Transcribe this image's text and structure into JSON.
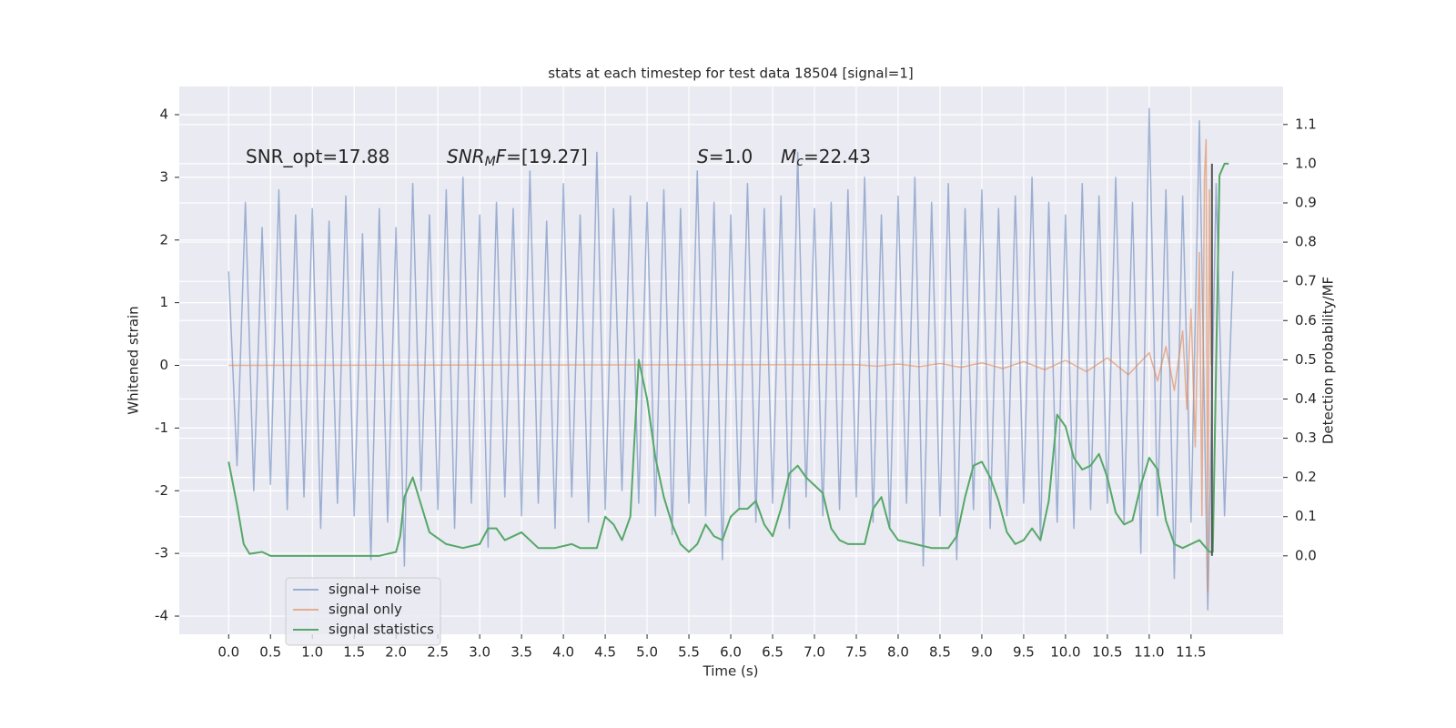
{
  "chart_data": {
    "type": "line",
    "title": "stats at each timestep for test data 18504 [signal=1]",
    "x_label": "Time (s)",
    "y_label": "Whitened strain",
    "y2_label": "Detection probability/MF",
    "annotations": [
      {
        "runs": [
          {
            "text": "SNR_opt=17.88"
          }
        ]
      },
      {
        "runs": [
          {
            "text": "SNR",
            "italic": true
          },
          {
            "text": "M",
            "italic": true,
            "sub": true
          },
          {
            "text": "F",
            "italic": true
          },
          {
            "text": "=[19.27]"
          }
        ]
      },
      {
        "runs": [
          {
            "text": "S",
            "italic": true
          },
          {
            "text": "=1.0"
          }
        ]
      },
      {
        "runs": [
          {
            "text": "M",
            "italic": true
          },
          {
            "text": "c",
            "italic": true,
            "sub": true
          },
          {
            "text": "=22.43"
          }
        ]
      }
    ],
    "grid": true,
    "legend": "lower left",
    "background": "#eaeaf2",
    "xlim": [
      -0.59,
      12.6
    ],
    "ylim": [
      -4.29,
      4.45
    ],
    "y2lim": [
      -0.2,
      1.197
    ],
    "xticks": [
      {
        "value": 0,
        "label": "0.0"
      },
      {
        "value": 0.5,
        "label": "0.5"
      },
      {
        "value": 1,
        "label": "1.0"
      },
      {
        "value": 1.5,
        "label": "1.5"
      },
      {
        "value": 2,
        "label": "2.0"
      },
      {
        "value": 2.5,
        "label": "2.5"
      },
      {
        "value": 3,
        "label": "3.0"
      },
      {
        "value": 3.5,
        "label": "3.5"
      },
      {
        "value": 4,
        "label": "4.0"
      },
      {
        "value": 4.5,
        "label": "4.5"
      },
      {
        "value": 5,
        "label": "5.0"
      },
      {
        "value": 5.5,
        "label": "5.5"
      },
      {
        "value": 6,
        "label": "6.0"
      },
      {
        "value": 6.5,
        "label": "6.5"
      },
      {
        "value": 7,
        "label": "7.0"
      },
      {
        "value": 7.5,
        "label": "7.5"
      },
      {
        "value": 8,
        "label": "8.0"
      },
      {
        "value": 8.5,
        "label": "8.5"
      },
      {
        "value": 9,
        "label": "9.0"
      },
      {
        "value": 9.5,
        "label": "9.5"
      },
      {
        "value": 10,
        "label": "10.0"
      },
      {
        "value": 10.5,
        "label": "10.5"
      },
      {
        "value": 11,
        "label": "11.0"
      },
      {
        "value": 11.5,
        "label": "11.5"
      }
    ],
    "yticks": [
      -4,
      -3,
      -2,
      -1,
      0,
      1,
      2,
      3,
      4
    ],
    "y2ticks": [
      {
        "value": 0,
        "label": "0.0"
      },
      {
        "value": 0.1,
        "label": "0.1"
      },
      {
        "value": 0.2,
        "label": "0.2"
      },
      {
        "value": 0.3,
        "label": "0.3"
      },
      {
        "value": 0.4,
        "label": "0.4"
      },
      {
        "value": 0.5,
        "label": "0.5"
      },
      {
        "value": 0.6,
        "label": "0.6"
      },
      {
        "value": 0.7,
        "label": "0.7"
      },
      {
        "value": 0.8,
        "label": "0.8"
      },
      {
        "value": 0.9,
        "label": "0.9"
      },
      {
        "value": 1,
        "label": "1.0"
      },
      {
        "value": 1.1,
        "label": "1.1"
      }
    ],
    "series": [
      {
        "name": "signal+ noise",
        "color": "#4c72b0",
        "opacity": 0.5,
        "x": [
          0.0,
          0.1,
          0.2,
          0.3,
          0.4,
          0.5,
          0.6,
          0.7,
          0.8,
          0.9,
          1.0,
          1.1,
          1.2,
          1.3,
          1.4,
          1.5,
          1.6,
          1.7,
          1.8,
          1.9,
          2.0,
          2.1,
          2.2,
          2.3,
          2.4,
          2.5,
          2.6,
          2.7,
          2.8,
          2.9,
          3.0,
          3.1,
          3.2,
          3.3,
          3.4,
          3.5,
          3.6,
          3.7,
          3.8,
          3.9,
          4.0,
          4.1,
          4.2,
          4.3,
          4.4,
          4.5,
          4.6,
          4.7,
          4.8,
          4.9,
          5.0,
          5.1,
          5.2,
          5.3,
          5.4,
          5.5,
          5.6,
          5.7,
          5.8,
          5.9,
          6.0,
          6.1,
          6.2,
          6.3,
          6.4,
          6.5,
          6.6,
          6.7,
          6.8,
          6.9,
          7.0,
          7.1,
          7.2,
          7.3,
          7.4,
          7.5,
          7.6,
          7.7,
          7.8,
          7.9,
          8.0,
          8.1,
          8.2,
          8.3,
          8.4,
          8.5,
          8.6,
          8.7,
          8.8,
          8.9,
          9.0,
          9.1,
          9.2,
          9.3,
          9.4,
          9.5,
          9.6,
          9.7,
          9.8,
          9.9,
          10.0,
          10.1,
          10.2,
          10.3,
          10.4,
          10.5,
          10.6,
          10.7,
          10.8,
          10.9,
          11.0,
          11.1,
          11.2,
          11.3,
          11.4,
          11.5,
          11.6,
          11.7,
          11.8,
          11.9,
          12.0
        ],
        "values": [
          1.5,
          -1.6,
          2.6,
          -2.0,
          2.2,
          -1.9,
          2.8,
          -2.3,
          2.4,
          -2.1,
          2.5,
          -2.6,
          2.3,
          -2.2,
          2.7,
          -2.4,
          2.1,
          -3.1,
          2.5,
          -2.5,
          2.2,
          -3.2,
          2.9,
          -2.0,
          2.4,
          -2.3,
          2.8,
          -2.6,
          3.0,
          -2.2,
          2.4,
          -2.9,
          2.6,
          -2.1,
          2.5,
          -2.4,
          3.1,
          -2.2,
          2.3,
          -2.6,
          2.9,
          -2.1,
          2.4,
          -2.5,
          3.4,
          -2.3,
          2.5,
          -2.0,
          2.7,
          -2.2,
          2.6,
          -2.4,
          2.8,
          -2.7,
          2.5,
          -2.2,
          3.1,
          -2.4,
          2.6,
          -3.1,
          2.4,
          -2.3,
          2.9,
          -2.5,
          2.5,
          -2.2,
          2.7,
          -2.6,
          3.4,
          -2.1,
          2.5,
          -2.4,
          2.6,
          -2.3,
          2.8,
          -2.1,
          3.0,
          -2.5,
          2.4,
          -2.6,
          2.7,
          -2.2,
          3.0,
          -3.2,
          2.6,
          -2.4,
          2.9,
          -3.1,
          2.5,
          -2.3,
          2.8,
          -2.6,
          2.5,
          -2.4,
          2.7,
          -2.2,
          3.0,
          -2.8,
          2.6,
          -2.5,
          2.4,
          -2.6,
          2.9,
          -2.3,
          2.7,
          -2.2,
          3.0,
          -2.5,
          2.6,
          -3.0,
          4.1,
          -2.4,
          2.8,
          -3.4,
          2.7,
          -2.5,
          3.9,
          -3.9,
          2.9,
          -2.4,
          1.5
        ]
      },
      {
        "name": "signal only",
        "color": "#dd8452",
        "opacity": 0.6,
        "x": [
          0.0,
          7.5,
          7.75,
          8.0,
          8.25,
          8.5,
          8.75,
          9.0,
          9.25,
          9.5,
          9.75,
          10.0,
          10.25,
          10.5,
          10.75,
          11.0,
          11.1,
          11.2,
          11.3,
          11.4,
          11.45,
          11.5,
          11.55,
          11.6,
          11.63,
          11.66,
          11.68,
          11.7,
          11.72,
          11.74
        ],
        "values": [
          0,
          0.01,
          -0.01,
          0.02,
          -0.02,
          0.03,
          -0.03,
          0.04,
          -0.05,
          0.06,
          -0.07,
          0.08,
          -0.1,
          0.12,
          -0.15,
          0.2,
          -0.25,
          0.3,
          -0.4,
          0.55,
          -0.7,
          0.9,
          -1.3,
          1.8,
          -2.4,
          3.0,
          3.6,
          -3.6,
          2.8,
          0
        ]
      },
      {
        "name": "signal statistics",
        "color": "#55a868",
        "opacity": 1,
        "axis": "y2",
        "x": [
          0.0,
          0.1,
          0.18,
          0.25,
          0.4,
          0.5,
          0.8,
          1.0,
          1.5,
          1.8,
          2.0,
          2.05,
          2.1,
          2.2,
          2.3,
          2.4,
          2.6,
          2.8,
          3.0,
          3.1,
          3.2,
          3.3,
          3.5,
          3.7,
          3.9,
          4.1,
          4.2,
          4.4,
          4.5,
          4.6,
          4.7,
          4.8,
          4.9,
          5.0,
          5.1,
          5.2,
          5.3,
          5.4,
          5.5,
          5.6,
          5.7,
          5.8,
          5.9,
          6.0,
          6.1,
          6.2,
          6.3,
          6.4,
          6.5,
          6.6,
          6.7,
          6.8,
          6.9,
          7.0,
          7.1,
          7.2,
          7.3,
          7.4,
          7.6,
          7.7,
          7.8,
          7.9,
          8.0,
          8.2,
          8.4,
          8.6,
          8.7,
          8.8,
          8.9,
          9.0,
          9.1,
          9.2,
          9.3,
          9.4,
          9.5,
          9.6,
          9.7,
          9.8,
          9.9,
          10.0,
          10.1,
          10.2,
          10.3,
          10.4,
          10.5,
          10.6,
          10.7,
          10.8,
          10.9,
          11.0,
          11.1,
          11.2,
          11.3,
          11.4,
          11.5,
          11.6,
          11.68,
          11.72,
          11.76,
          11.84,
          11.9,
          11.95
        ],
        "values": [
          0.24,
          0.13,
          0.03,
          0.005,
          0.01,
          0.0,
          0.0,
          0.0,
          0.0,
          0.0,
          0.01,
          0.05,
          0.15,
          0.2,
          0.13,
          0.06,
          0.03,
          0.02,
          0.03,
          0.07,
          0.07,
          0.04,
          0.06,
          0.02,
          0.02,
          0.03,
          0.02,
          0.02,
          0.1,
          0.08,
          0.04,
          0.1,
          0.5,
          0.4,
          0.25,
          0.15,
          0.08,
          0.03,
          0.01,
          0.03,
          0.08,
          0.05,
          0.04,
          0.1,
          0.12,
          0.12,
          0.14,
          0.08,
          0.05,
          0.12,
          0.21,
          0.23,
          0.2,
          0.18,
          0.16,
          0.07,
          0.04,
          0.03,
          0.03,
          0.12,
          0.15,
          0.07,
          0.04,
          0.03,
          0.02,
          0.02,
          0.05,
          0.15,
          0.23,
          0.24,
          0.2,
          0.14,
          0.06,
          0.03,
          0.04,
          0.07,
          0.04,
          0.14,
          0.36,
          0.33,
          0.25,
          0.22,
          0.23,
          0.26,
          0.2,
          0.11,
          0.08,
          0.09,
          0.18,
          0.25,
          0.22,
          0.09,
          0.03,
          0.02,
          0.03,
          0.04,
          0.02,
          0.01,
          0.01,
          0.97,
          1.0,
          1.0
        ]
      }
    ],
    "vline": {
      "x": 11.75,
      "y2": [
        0,
        1
      ],
      "color": "#555555"
    }
  }
}
